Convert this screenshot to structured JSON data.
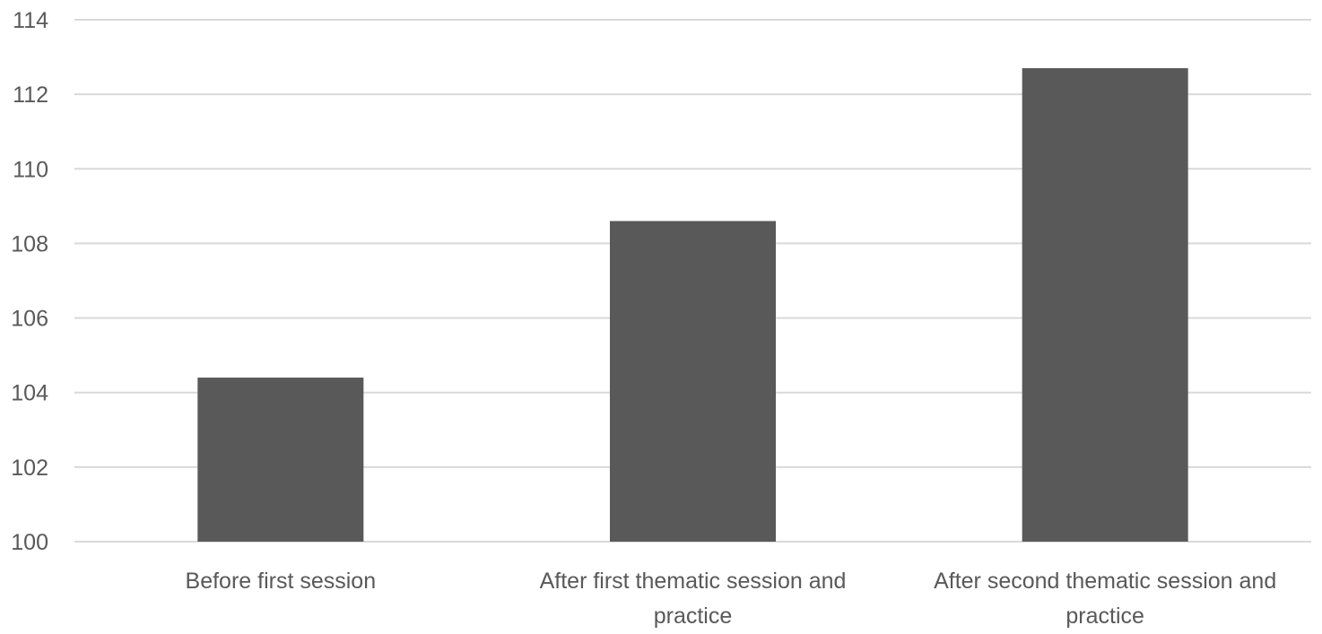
{
  "chart_data": {
    "type": "bar",
    "title": "",
    "xlabel": "",
    "ylabel": "",
    "categories": [
      [
        "Before first session"
      ],
      [
        "After first thematic session and",
        "practice"
      ],
      [
        "After second thematic session and",
        "practice"
      ]
    ],
    "values": [
      104.4,
      108.6,
      112.7
    ],
    "ylim": [
      100,
      114
    ],
    "yticks": [
      "100",
      "102",
      "104",
      "106",
      "108",
      "110",
      "112",
      "114"
    ],
    "grid": true,
    "legend": "none",
    "bar_color": "#595959",
    "grid_color": "#d9d9d9"
  }
}
